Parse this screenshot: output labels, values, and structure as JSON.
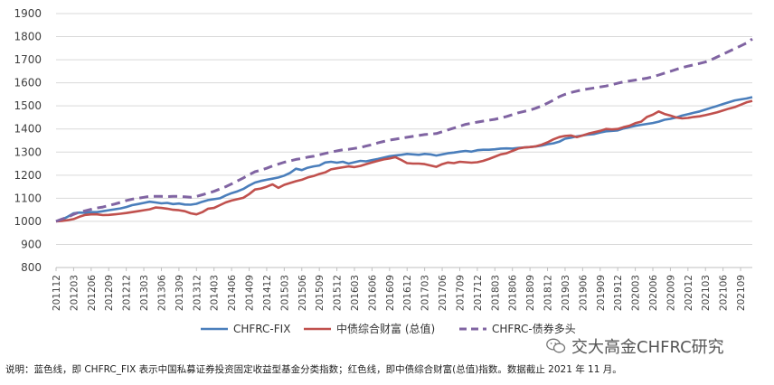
{
  "chart_data": {
    "type": "line",
    "title": "",
    "xlabel": "",
    "ylabel": "",
    "ylim": [
      800,
      1900
    ],
    "yticks": [
      800,
      900,
      1000,
      1100,
      1200,
      1300,
      1400,
      1500,
      1600,
      1700,
      1800,
      1900
    ],
    "grid": "horizontal",
    "legend_position": "bottom",
    "x": [
      "201112",
      "201201",
      "201202",
      "201203",
      "201204",
      "201205",
      "201206",
      "201207",
      "201208",
      "201209",
      "201210",
      "201211",
      "201212",
      "201301",
      "201302",
      "201303",
      "201304",
      "201305",
      "201306",
      "201307",
      "201308",
      "201309",
      "201310",
      "201311",
      "201312",
      "201401",
      "201402",
      "201403",
      "201404",
      "201405",
      "201406",
      "201407",
      "201408",
      "201409",
      "201410",
      "201411",
      "201412",
      "201501",
      "201502",
      "201503",
      "201504",
      "201505",
      "201506",
      "201507",
      "201508",
      "201509",
      "201510",
      "201511",
      "201512",
      "201601",
      "201602",
      "201603",
      "201604",
      "201605",
      "201606",
      "201607",
      "201608",
      "201609",
      "201610",
      "201611",
      "201612",
      "201701",
      "201702",
      "201703",
      "201704",
      "201705",
      "201706",
      "201707",
      "201708",
      "201709",
      "201710",
      "201711",
      "201712",
      "201801",
      "201802",
      "201803",
      "201804",
      "201805",
      "201806",
      "201807",
      "201808",
      "201809",
      "201810",
      "201811",
      "201812",
      "201901",
      "201902",
      "201903",
      "201904",
      "201905",
      "201906",
      "201907",
      "201908",
      "201909",
      "201910",
      "201911",
      "201912",
      "202001",
      "202002",
      "202003",
      "202004",
      "202005",
      "202006",
      "202007",
      "202008",
      "202009",
      "202010",
      "202011",
      "202012",
      "202101",
      "202102",
      "202103",
      "202104",
      "202105",
      "202106",
      "202107",
      "202108",
      "202109",
      "202110",
      "202111"
    ],
    "xtick_labels": [
      "201112",
      "201203",
      "201206",
      "201209",
      "201212",
      "201303",
      "201306",
      "201309",
      "201312",
      "201403",
      "201406",
      "201409",
      "201412",
      "201503",
      "201506",
      "201509",
      "201512",
      "201603",
      "201606",
      "201609",
      "201612",
      "201703",
      "201706",
      "201709",
      "201712",
      "201803",
      "201806",
      "201809",
      "201812",
      "201903",
      "201906",
      "201909",
      "201912",
      "202003",
      "202006",
      "202009",
      "202012",
      "202103",
      "202106",
      "202109"
    ],
    "series": [
      {
        "name": "CHFRC-FIX",
        "color": "#4a7ebb",
        "dash": "solid",
        "values": [
          1000,
          1008,
          1020,
          1035,
          1038,
          1037,
          1040,
          1040,
          1044,
          1048,
          1052,
          1056,
          1062,
          1070,
          1075,
          1080,
          1085,
          1082,
          1078,
          1080,
          1075,
          1077,
          1073,
          1072,
          1076,
          1085,
          1092,
          1096,
          1100,
          1112,
          1122,
          1130,
          1140,
          1155,
          1168,
          1175,
          1180,
          1185,
          1190,
          1198,
          1210,
          1228,
          1222,
          1232,
          1238,
          1242,
          1255,
          1258,
          1254,
          1258,
          1250,
          1256,
          1262,
          1260,
          1265,
          1270,
          1276,
          1282,
          1285,
          1288,
          1292,
          1290,
          1288,
          1292,
          1290,
          1285,
          1290,
          1295,
          1298,
          1302,
          1305,
          1302,
          1308,
          1310,
          1310,
          1312,
          1315,
          1316,
          1315,
          1318,
          1320,
          1322,
          1324,
          1328,
          1334,
          1338,
          1345,
          1358,
          1362,
          1368,
          1372,
          1376,
          1378,
          1385,
          1390,
          1392,
          1394,
          1402,
          1408,
          1414,
          1418,
          1422,
          1426,
          1432,
          1440,
          1444,
          1450,
          1458,
          1464,
          1470,
          1476,
          1484,
          1492,
          1500,
          1508,
          1516,
          1524,
          1528,
          1532,
          1538
        ]
      },
      {
        "name": "中债综合财富 (总值)",
        "color": "#c0504d",
        "dash": "solid",
        "values": [
          1000,
          1002,
          1005,
          1010,
          1020,
          1028,
          1030,
          1030,
          1027,
          1028,
          1030,
          1033,
          1036,
          1040,
          1044,
          1048,
          1052,
          1060,
          1058,
          1055,
          1050,
          1048,
          1044,
          1035,
          1030,
          1040,
          1055,
          1058,
          1070,
          1082,
          1090,
          1096,
          1102,
          1118,
          1138,
          1142,
          1150,
          1160,
          1145,
          1158,
          1166,
          1174,
          1180,
          1190,
          1196,
          1205,
          1212,
          1225,
          1230,
          1234,
          1238,
          1235,
          1240,
          1248,
          1255,
          1262,
          1268,
          1272,
          1278,
          1266,
          1252,
          1250,
          1250,
          1248,
          1242,
          1236,
          1248,
          1255,
          1252,
          1258,
          1256,
          1254,
          1256,
          1262,
          1270,
          1280,
          1290,
          1295,
          1305,
          1315,
          1320,
          1322,
          1325,
          1332,
          1342,
          1355,
          1365,
          1370,
          1372,
          1365,
          1372,
          1380,
          1386,
          1392,
          1400,
          1398,
          1400,
          1408,
          1414,
          1425,
          1432,
          1452,
          1462,
          1476,
          1465,
          1458,
          1450,
          1446,
          1448,
          1452,
          1455,
          1460,
          1466,
          1472,
          1480,
          1488,
          1495,
          1505,
          1515,
          1522
        ]
      },
      {
        "name": "CHFRC-债券多头",
        "color": "#8064a2",
        "dash": "dashed",
        "values": [
          1000,
          1010,
          1018,
          1030,
          1040,
          1046,
          1052,
          1058,
          1062,
          1068,
          1075,
          1082,
          1090,
          1096,
          1100,
          1104,
          1108,
          1108,
          1108,
          1107,
          1108,
          1108,
          1106,
          1104,
          1108,
          1115,
          1122,
          1130,
          1140,
          1150,
          1162,
          1175,
          1188,
          1202,
          1215,
          1222,
          1230,
          1240,
          1248,
          1256,
          1262,
          1268,
          1272,
          1278,
          1282,
          1288,
          1294,
          1300,
          1305,
          1310,
          1312,
          1316,
          1320,
          1326,
          1332,
          1340,
          1346,
          1352,
          1356,
          1360,
          1364,
          1368,
          1372,
          1376,
          1378,
          1380,
          1388,
          1396,
          1404,
          1412,
          1420,
          1425,
          1430,
          1434,
          1438,
          1442,
          1448,
          1454,
          1462,
          1470,
          1476,
          1482,
          1490,
          1500,
          1512,
          1525,
          1540,
          1550,
          1558,
          1564,
          1570,
          1574,
          1578,
          1582,
          1586,
          1592,
          1598,
          1604,
          1608,
          1612,
          1616,
          1620,
          1626,
          1634,
          1642,
          1650,
          1658,
          1666,
          1672,
          1678,
          1684,
          1690,
          1700,
          1712,
          1724,
          1736,
          1748,
          1760,
          1772,
          1790
        ]
      }
    ]
  },
  "note": "说明：蓝色线，即 CHFRC_FIX 表示中国私募证券投资固定收益型基金分类指数；红色线，即中债综合财富(总值)指数。数据截止 2021 年 11 月。",
  "watermark": "交大高金CHFRC研究",
  "watermark_icon": "wechat-icon"
}
